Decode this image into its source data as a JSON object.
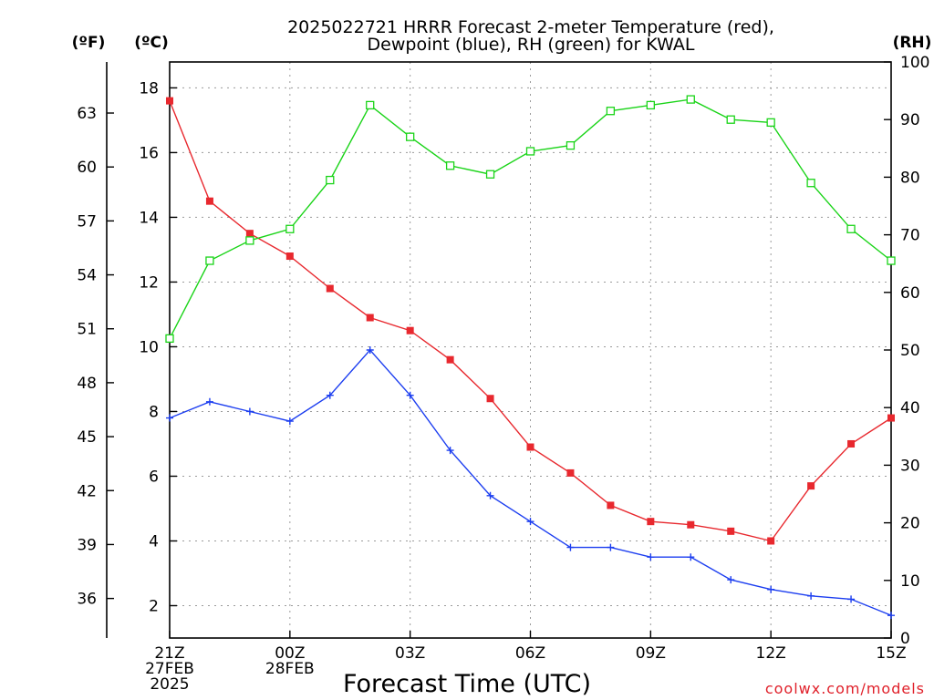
{
  "chart_data": {
    "type": "line",
    "title": [
      "2025022721 HRRR Forecast 2-meter Temperature (red),",
      "Dewpoint (blue), RH (green) for KWAL"
    ],
    "xlabel": "Forecast Time (UTC)",
    "credit": "coolwx.com/models",
    "units": {
      "fahrenheit": "(ºF)",
      "celsius": "(ºC)",
      "rh": "(RH)"
    },
    "x_ticks": [
      {
        "hour": 0,
        "lines": [
          "21Z",
          "27FEB",
          "2025"
        ]
      },
      {
        "hour": 3,
        "lines": [
          "00Z",
          "28FEB"
        ]
      },
      {
        "hour": 6,
        "lines": [
          "03Z"
        ]
      },
      {
        "hour": 9,
        "lines": [
          "06Z"
        ]
      },
      {
        "hour": 12,
        "lines": [
          "09Z"
        ]
      },
      {
        "hour": 15,
        "lines": [
          "12Z"
        ]
      },
      {
        "hour": 18,
        "lines": [
          "15Z"
        ]
      }
    ],
    "x": [
      0,
      1,
      2,
      3,
      4,
      5,
      6,
      7,
      8,
      9,
      10,
      11,
      12,
      13,
      14,
      15,
      16,
      17,
      18
    ],
    "xlim": [
      0,
      18
    ],
    "ylim_celsius": [
      1,
      18.8
    ],
    "y_ticks_celsius": [
      2,
      4,
      6,
      8,
      10,
      12,
      14,
      16,
      18
    ],
    "y_ticks_fahrenheit": [
      36,
      39,
      42,
      45,
      48,
      51,
      54,
      57,
      60,
      63
    ],
    "ylim_rh": [
      0,
      100
    ],
    "y_ticks_rh": [
      0,
      10,
      20,
      30,
      40,
      50,
      60,
      70,
      80,
      90,
      100
    ],
    "grid": true,
    "series": [
      {
        "name": "Temperature",
        "color": "#e8282e",
        "marker": "filled-square",
        "axis": "celsius",
        "values": [
          17.6,
          14.5,
          13.5,
          12.8,
          11.8,
          10.9,
          10.5,
          9.6,
          8.4,
          6.9,
          6.1,
          5.1,
          4.6,
          4.5,
          4.3,
          4.0,
          5.7,
          7.0,
          7.8
        ]
      },
      {
        "name": "Dewpoint",
        "color": "#1c3ef0",
        "marker": "plus",
        "axis": "celsius",
        "values": [
          7.8,
          8.3,
          8.0,
          7.7,
          8.5,
          9.9,
          8.5,
          6.8,
          5.4,
          4.6,
          3.8,
          3.8,
          3.5,
          3.5,
          2.8,
          2.5,
          2.3,
          2.2,
          1.7
        ]
      },
      {
        "name": "RH",
        "color": "#1ad418",
        "marker": "open-square",
        "axis": "rh",
        "values": [
          52,
          65.5,
          69,
          71,
          79.5,
          92.5,
          87,
          82,
          80.5,
          84.5,
          85.5,
          91.5,
          92.5,
          93.5,
          90,
          89.5,
          79,
          71,
          65.5
        ]
      }
    ]
  }
}
